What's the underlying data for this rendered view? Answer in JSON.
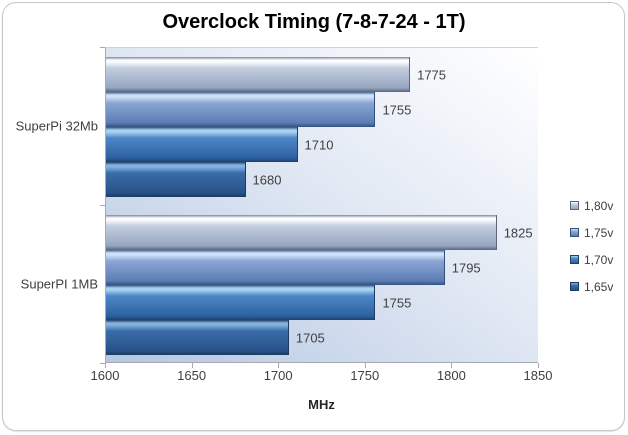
{
  "chart_data": {
    "type": "bar",
    "orientation": "horizontal",
    "title": "Overclock Timing (7-8-7-24 - 1T)",
    "categories": [
      "SuperPi 32Mb",
      "SuperPI 1MB"
    ],
    "series": [
      {
        "name": "1,80v",
        "values": [
          1775,
          1825
        ]
      },
      {
        "name": "1,75v",
        "values": [
          1755,
          1795
        ]
      },
      {
        "name": "1,70v",
        "values": [
          1710,
          1755
        ]
      },
      {
        "name": "1,65v",
        "values": [
          1680,
          1705
        ]
      }
    ],
    "xlabel": "MHz",
    "xlim": [
      1600,
      1850
    ],
    "xticks": [
      1600,
      1650,
      1700,
      1750,
      1800,
      1850
    ],
    "legend_position": "right",
    "grid": false,
    "data_labels": true
  },
  "colors": {
    "series": [
      {
        "name": "1,80v",
        "edge_top": "#7e879c",
        "highlight": "#fafcfe",
        "body_light": "#c3cde0",
        "body_dark": "#96a5c0",
        "shadow": "#5d6578"
      },
      {
        "name": "1,75v",
        "edge_top": "#46618e",
        "highlight": "#cfe1f6",
        "body_light": "#8aa6d4",
        "body_dark": "#5b7db4",
        "shadow": "#33517e"
      },
      {
        "name": "1,70v",
        "edge_top": "#2c4e7c",
        "highlight": "#a8d2f2",
        "body_light": "#4c86c6",
        "body_dark": "#2d62a2",
        "shadow": "#1e4068"
      },
      {
        "name": "1,65v",
        "edge_top": "#233f63",
        "highlight": "#82b2e0",
        "body_light": "#3a6ca8",
        "body_dark": "#285289",
        "shadow": "#1a3a5e"
      }
    ],
    "plot_bg_from": "#b5c6e2",
    "plot_bg_mid": "#e2e9f4",
    "plot_bg_to": "#ffffff",
    "axis": "#a6abb3",
    "frame_border": "#c6c6c6",
    "title_color": "#000000",
    "label_color": "#404040"
  }
}
